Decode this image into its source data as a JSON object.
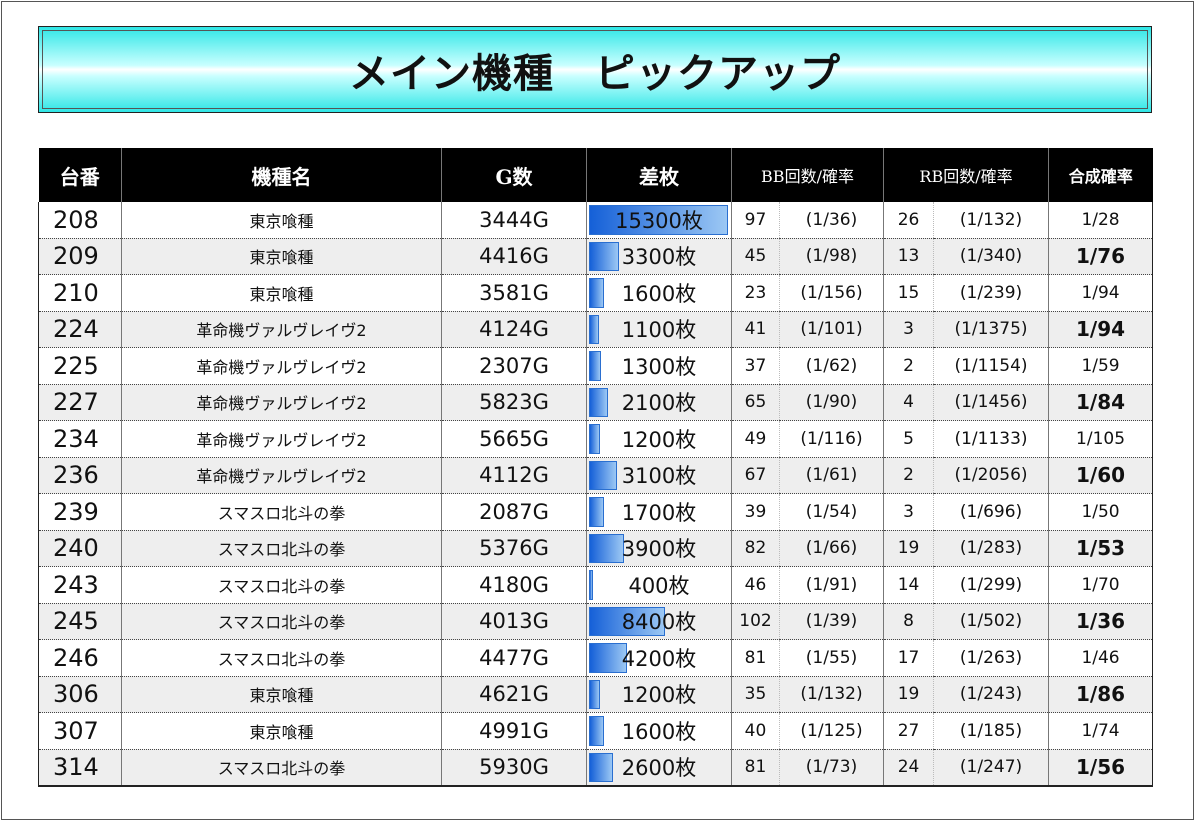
{
  "title": "メイン機種　ピックアップ",
  "headers": {
    "machine_no": "台番",
    "machine_name": "機種名",
    "games": "G数",
    "difference": "差枚",
    "bb": "BB回数/確率",
    "rb": "RB回数/確率",
    "combined": "合成確率"
  },
  "rows": [
    {
      "no": "208",
      "name": "東京喰種",
      "games": "3444G",
      "diff": "15300枚",
      "diff_value": 15300,
      "bb_count": "97",
      "bb_rate": "(1/36)",
      "rb_count": "26",
      "rb_rate": "(1/132)",
      "combined": "1/28",
      "combined_bold": false
    },
    {
      "no": "209",
      "name": "東京喰種",
      "games": "4416G",
      "diff": "3300枚",
      "diff_value": 3300,
      "bb_count": "45",
      "bb_rate": "(1/98)",
      "rb_count": "13",
      "rb_rate": "(1/340)",
      "combined": "1/76",
      "combined_bold": true
    },
    {
      "no": "210",
      "name": "東京喰種",
      "games": "3581G",
      "diff": "1600枚",
      "diff_value": 1600,
      "bb_count": "23",
      "bb_rate": "(1/156)",
      "rb_count": "15",
      "rb_rate": "(1/239)",
      "combined": "1/94",
      "combined_bold": false
    },
    {
      "no": "224",
      "name": "革命機ヴァルヴレイヴ2",
      "games": "4124G",
      "diff": "1100枚",
      "diff_value": 1100,
      "bb_count": "41",
      "bb_rate": "(1/101)",
      "rb_count": "3",
      "rb_rate": "(1/1375)",
      "combined": "1/94",
      "combined_bold": true
    },
    {
      "no": "225",
      "name": "革命機ヴァルヴレイヴ2",
      "games": "2307G",
      "diff": "1300枚",
      "diff_value": 1300,
      "bb_count": "37",
      "bb_rate": "(1/62)",
      "rb_count": "2",
      "rb_rate": "(1/1154)",
      "combined": "1/59",
      "combined_bold": false
    },
    {
      "no": "227",
      "name": "革命機ヴァルヴレイヴ2",
      "games": "5823G",
      "diff": "2100枚",
      "diff_value": 2100,
      "bb_count": "65",
      "bb_rate": "(1/90)",
      "rb_count": "4",
      "rb_rate": "(1/1456)",
      "combined": "1/84",
      "combined_bold": true
    },
    {
      "no": "234",
      "name": "革命機ヴァルヴレイヴ2",
      "games": "5665G",
      "diff": "1200枚",
      "diff_value": 1200,
      "bb_count": "49",
      "bb_rate": "(1/116)",
      "rb_count": "5",
      "rb_rate": "(1/1133)",
      "combined": "1/105",
      "combined_bold": false
    },
    {
      "no": "236",
      "name": "革命機ヴァルヴレイヴ2",
      "games": "4112G",
      "diff": "3100枚",
      "diff_value": 3100,
      "bb_count": "67",
      "bb_rate": "(1/61)",
      "rb_count": "2",
      "rb_rate": "(1/2056)",
      "combined": "1/60",
      "combined_bold": true
    },
    {
      "no": "239",
      "name": "スマスロ北斗の拳",
      "games": "2087G",
      "diff": "1700枚",
      "diff_value": 1700,
      "bb_count": "39",
      "bb_rate": "(1/54)",
      "rb_count": "3",
      "rb_rate": "(1/696)",
      "combined": "1/50",
      "combined_bold": false
    },
    {
      "no": "240",
      "name": "スマスロ北斗の拳",
      "games": "5376G",
      "diff": "3900枚",
      "diff_value": 3900,
      "bb_count": "82",
      "bb_rate": "(1/66)",
      "rb_count": "19",
      "rb_rate": "(1/283)",
      "combined": "1/53",
      "combined_bold": true
    },
    {
      "no": "243",
      "name": "スマスロ北斗の拳",
      "games": "4180G",
      "diff": "400枚",
      "diff_value": 400,
      "bb_count": "46",
      "bb_rate": "(1/91)",
      "rb_count": "14",
      "rb_rate": "(1/299)",
      "combined": "1/70",
      "combined_bold": false
    },
    {
      "no": "245",
      "name": "スマスロ北斗の拳",
      "games": "4013G",
      "diff": "8400枚",
      "diff_value": 8400,
      "bb_count": "102",
      "bb_rate": "(1/39)",
      "rb_count": "8",
      "rb_rate": "(1/502)",
      "combined": "1/36",
      "combined_bold": true
    },
    {
      "no": "246",
      "name": "スマスロ北斗の拳",
      "games": "4477G",
      "diff": "4200枚",
      "diff_value": 4200,
      "bb_count": "81",
      "bb_rate": "(1/55)",
      "rb_count": "17",
      "rb_rate": "(1/263)",
      "combined": "1/46",
      "combined_bold": false
    },
    {
      "no": "306",
      "name": "東京喰種",
      "games": "4621G",
      "diff": "1200枚",
      "diff_value": 1200,
      "bb_count": "35",
      "bb_rate": "(1/132)",
      "rb_count": "19",
      "rb_rate": "(1/243)",
      "combined": "1/86",
      "combined_bold": true
    },
    {
      "no": "307",
      "name": "東京喰種",
      "games": "4991G",
      "diff": "1600枚",
      "diff_value": 1600,
      "bb_count": "40",
      "bb_rate": "(1/125)",
      "rb_count": "27",
      "rb_rate": "(1/185)",
      "combined": "1/74",
      "combined_bold": false
    },
    {
      "no": "314",
      "name": "スマスロ北斗の拳",
      "games": "5930G",
      "diff": "2600枚",
      "diff_value": 2600,
      "bb_count": "81",
      "bb_rate": "(1/73)",
      "rb_count": "24",
      "rb_rate": "(1/247)",
      "combined": "1/56",
      "combined_bold": true
    }
  ]
}
